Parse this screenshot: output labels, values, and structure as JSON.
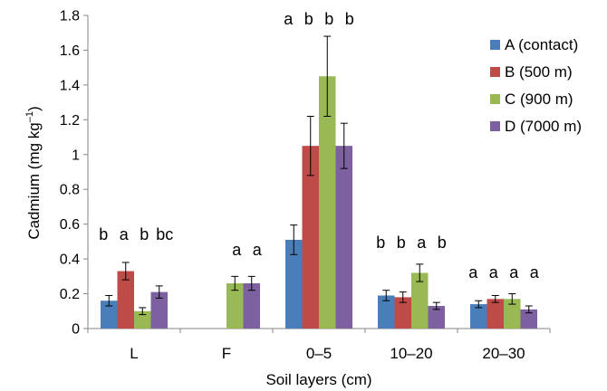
{
  "chart_data": {
    "type": "bar",
    "categories": [
      "L",
      "F",
      "0–5",
      "10–20",
      "20–30"
    ],
    "series": [
      {
        "name": "A (contact)",
        "color": "#4a7ebb",
        "values": [
          0.16,
          null,
          0.51,
          0.19,
          0.14
        ],
        "errors": [
          0.03,
          null,
          0.085,
          0.03,
          0.02
        ]
      },
      {
        "name": "B (500 m)",
        "color": "#be4b48",
        "values": [
          0.33,
          null,
          1.05,
          0.18,
          0.17
        ],
        "errors": [
          0.05,
          null,
          0.17,
          0.03,
          0.02
        ]
      },
      {
        "name": "C (900 m)",
        "color": "#98b954",
        "values": [
          0.1,
          0.26,
          1.45,
          0.32,
          0.17
        ],
        "errors": [
          0.02,
          0.04,
          0.23,
          0.05,
          0.03
        ]
      },
      {
        "name": "D (7000 m)",
        "color": "#7d60a0",
        "values": [
          0.21,
          0.26,
          1.05,
          0.13,
          0.11
        ],
        "errors": [
          0.035,
          0.04,
          0.13,
          0.02,
          0.02
        ]
      }
    ],
    "significance_letters": [
      [
        "b",
        "a",
        "b",
        "bc"
      ],
      [
        null,
        null,
        "a",
        "a"
      ],
      [
        "a",
        "b",
        "b",
        "b"
      ],
      [
        "b",
        "b",
        "a",
        "b"
      ],
      [
        "a",
        "a",
        "a",
        "a"
      ]
    ],
    "yticks": [
      "0",
      "0.2",
      "0.4",
      "0.6",
      "0.8",
      "1",
      "1.2",
      "1.4",
      "1.6",
      "1.8"
    ],
    "ylim": [
      0,
      1.8
    ],
    "xlabel": "Soil layers (cm)",
    "ylabel_main": "Cadmium (mg kg",
    "ylabel_sup": "–1",
    "ylabel_end": ")",
    "grid": false,
    "legend_position": "right"
  }
}
